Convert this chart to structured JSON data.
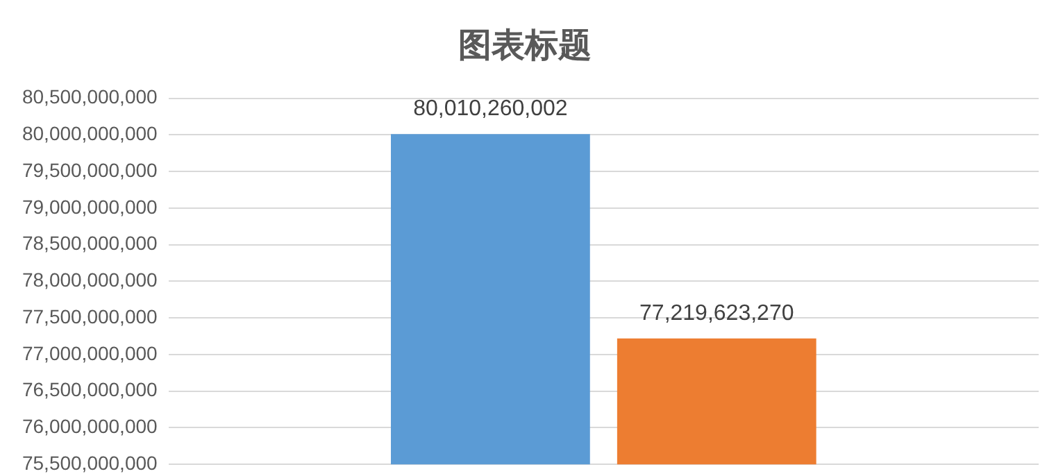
{
  "chart_data": {
    "type": "bar",
    "title": "图表标题",
    "categories": [
      null
    ],
    "series": [
      {
        "color": "#5b9bd5",
        "values": [
          80010260002
        ],
        "value_labels": [
          "80,010,260,002"
        ]
      },
      {
        "color": "#ed7d31",
        "values": [
          77219623270
        ],
        "value_labels": [
          "77,219,623,270"
        ]
      }
    ],
    "ylim": [
      75500000000,
      80500000000
    ],
    "yticks": [
      {
        "value": 75500000000,
        "label": "75,500,000,000"
      },
      {
        "value": 76000000000,
        "label": "76,000,000,000"
      },
      {
        "value": 76500000000,
        "label": "76,500,000,000"
      },
      {
        "value": 77000000000,
        "label": "77,000,000,000"
      },
      {
        "value": 77500000000,
        "label": "77,500,000,000"
      },
      {
        "value": 78000000000,
        "label": "78,000,000,000"
      },
      {
        "value": 78500000000,
        "label": "78,500,000,000"
      },
      {
        "value": 79000000000,
        "label": "79,000,000,000"
      },
      {
        "value": 79500000000,
        "label": "79,500,000,000"
      },
      {
        "value": 80000000000,
        "label": "80,000,000,000"
      },
      {
        "value": 80500000000,
        "label": "80,500,000,000"
      }
    ],
    "grid": "y"
  }
}
